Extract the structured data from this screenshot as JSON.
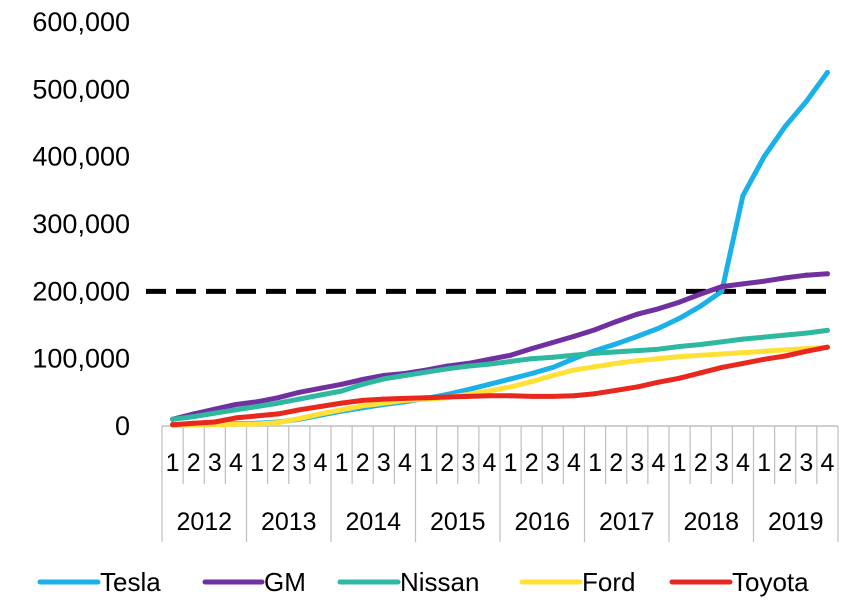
{
  "chart_data": {
    "type": "line",
    "title": "",
    "xlabel": "",
    "ylabel": "",
    "ylim": [
      0,
      600000
    ],
    "yticks": [
      0,
      100000,
      200000,
      300000,
      400000,
      500000,
      600000
    ],
    "ytick_labels": [
      "0",
      "100,000",
      "200,000",
      "300,000",
      "400,000",
      "500,000",
      "600,000"
    ],
    "quarter_labels": [
      "1",
      "2",
      "3",
      "4",
      "1",
      "2",
      "3",
      "4",
      "1",
      "2",
      "3",
      "4",
      "1",
      "2",
      "3",
      "4",
      "1",
      "2",
      "3",
      "4",
      "1",
      "2",
      "3",
      "4",
      "1",
      "2",
      "3",
      "4",
      "1",
      "2",
      "3",
      "4"
    ],
    "years": [
      "2012",
      "2013",
      "2014",
      "2015",
      "2016",
      "2017",
      "2018",
      "2019"
    ],
    "grid": false,
    "legend_position": "bottom",
    "reference_line": {
      "value": 200000,
      "style": "dashed",
      "color": "#000000"
    },
    "series": [
      {
        "name": "Tesla",
        "color": "#1ab0e8",
        "values": [
          2000,
          2500,
          3000,
          3500,
          4000,
          6000,
          10000,
          16000,
          22000,
          27000,
          32000,
          36000,
          41000,
          47000,
          54000,
          62000,
          70000,
          78000,
          87000,
          100000,
          112000,
          122000,
          133000,
          145000,
          160000,
          178000,
          200000,
          342000,
          400000,
          445000,
          482000,
          525000
        ]
      },
      {
        "name": "GM",
        "color": "#7030a0",
        "values": [
          10000,
          18000,
          25000,
          32000,
          36000,
          42000,
          50000,
          56000,
          62000,
          69000,
          75000,
          78000,
          83000,
          89000,
          93000,
          99000,
          105000,
          115000,
          124000,
          133000,
          143000,
          155000,
          166000,
          174000,
          184000,
          196000,
          207000,
          211000,
          215000,
          220000,
          224000,
          226000
        ]
      },
      {
        "name": "Nissan",
        "color": "#2eb8a0",
        "values": [
          10000,
          14000,
          19000,
          24000,
          29000,
          34000,
          40000,
          46000,
          52000,
          62000,
          70000,
          75000,
          80000,
          85000,
          89000,
          92000,
          96000,
          100000,
          102000,
          105000,
          108000,
          110000,
          112000,
          114000,
          118000,
          121000,
          125000,
          129000,
          132000,
          135000,
          138000,
          142000
        ]
      },
      {
        "name": "Ford",
        "color": "#ffe135",
        "values": [
          1000,
          1500,
          2000,
          2500,
          3000,
          5000,
          11000,
          18000,
          24000,
          30000,
          34000,
          38000,
          40000,
          42000,
          47000,
          52000,
          58000,
          66000,
          75000,
          83000,
          88000,
          93000,
          97000,
          100000,
          103000,
          105000,
          107000,
          109000,
          111000,
          113000,
          115000,
          117000
        ]
      },
      {
        "name": "Toyota",
        "color": "#e8281e",
        "values": [
          2000,
          4000,
          6000,
          12000,
          15000,
          18000,
          24000,
          29000,
          34000,
          38000,
          40000,
          41000,
          42000,
          43000,
          44000,
          45000,
          45000,
          44000,
          44000,
          45000,
          48000,
          53000,
          58000,
          65000,
          71000,
          79000,
          87000,
          93000,
          99000,
          104000,
          111000,
          117000
        ]
      }
    ]
  }
}
